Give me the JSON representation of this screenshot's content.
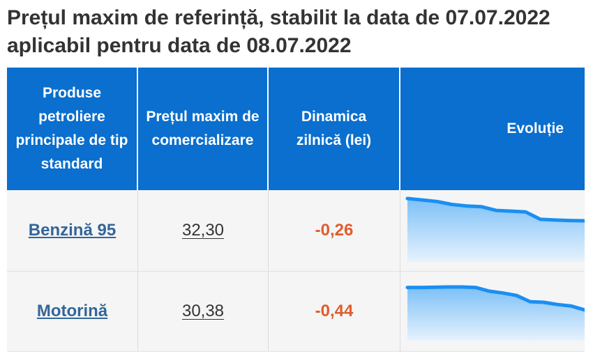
{
  "title": "Prețul maxim de referință, stabilit la data de 07.07.2022 aplicabil pentru data de 08.07.2022",
  "table": {
    "headers": {
      "product": "Produse petroliere principale de tip standard",
      "price": "Prețul maxim de comercializare",
      "dynamic": "Dinamica zilnică (lei)",
      "evolution": "Evoluție"
    },
    "rows": [
      {
        "product": "Benzină 95",
        "price": "32,30",
        "dynamic": "-0,26",
        "evolution": [
          33.8,
          33.7,
          33.6,
          33.4,
          33.3,
          33.25,
          33.0,
          32.95,
          32.9,
          32.4,
          32.35,
          32.32,
          32.3
        ]
      },
      {
        "product": "Motorină",
        "price": "30,38",
        "dynamic": "-0,44",
        "evolution": [
          32.2,
          32.2,
          32.22,
          32.24,
          32.24,
          32.2,
          31.9,
          31.75,
          31.55,
          31.05,
          31.0,
          30.82,
          30.7,
          30.38
        ]
      }
    ]
  },
  "colors": {
    "header_bg": "#0a6fce",
    "line": "#1a8ff2",
    "area_top": "#7cc0f7",
    "area_bottom": "#e6f2fd",
    "negative": "#e05c2c",
    "link": "#336699"
  }
}
